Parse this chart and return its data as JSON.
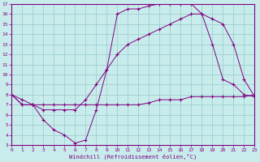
{
  "xlabel": "Windchill (Refroidissement éolien,°C)",
  "bg_color": "#c8ecec",
  "grid_color": "#9fcfcf",
  "line_color": "#800080",
  "xlim": [
    0,
    23
  ],
  "ylim": [
    3,
    17
  ],
  "xticks": [
    0,
    1,
    2,
    3,
    4,
    5,
    6,
    7,
    8,
    9,
    10,
    11,
    12,
    13,
    14,
    15,
    16,
    17,
    18,
    19,
    20,
    21,
    22,
    23
  ],
  "yticks": [
    3,
    4,
    5,
    6,
    7,
    8,
    9,
    10,
    11,
    12,
    13,
    14,
    15,
    16,
    17
  ],
  "line1_x": [
    0,
    1,
    2,
    3,
    4,
    5,
    6,
    7,
    8,
    9,
    10,
    11,
    12,
    13,
    14,
    15,
    16,
    17,
    18,
    19,
    20,
    21,
    22,
    23
  ],
  "line1_y": [
    8.0,
    7.5,
    7.0,
    7.0,
    7.0,
    7.0,
    7.0,
    7.0,
    7.0,
    7.0,
    7.0,
    7.0,
    7.0,
    7.2,
    7.5,
    7.5,
    7.5,
    7.8,
    7.8,
    7.8,
    7.8,
    7.8,
    7.8,
    8.0
  ],
  "line2_x": [
    0,
    1,
    2,
    3,
    4,
    5,
    6,
    7,
    8,
    9,
    10,
    11,
    12,
    13,
    14,
    15,
    16,
    17,
    18,
    19,
    20,
    21,
    22,
    23
  ],
  "line2_y": [
    8.0,
    7.0,
    7.0,
    5.5,
    4.5,
    4.0,
    3.2,
    3.5,
    6.5,
    10.5,
    16.0,
    16.5,
    16.5,
    16.8,
    17.0,
    17.0,
    17.0,
    17.0,
    16.0,
    13.0,
    9.5,
    9.0,
    8.0,
    7.8
  ],
  "line3_x": [
    0,
    1,
    2,
    3,
    4,
    5,
    6,
    7,
    8,
    9,
    10,
    11,
    12,
    13,
    14,
    15,
    16,
    17,
    18,
    19,
    20,
    21,
    22,
    23
  ],
  "line3_y": [
    8.0,
    7.0,
    7.0,
    6.5,
    6.5,
    6.5,
    6.5,
    7.5,
    9.0,
    10.5,
    12.0,
    13.0,
    13.5,
    14.0,
    14.5,
    15.0,
    15.5,
    16.0,
    16.0,
    15.5,
    15.0,
    13.0,
    9.5,
    7.8
  ],
  "font_family": "monospace"
}
